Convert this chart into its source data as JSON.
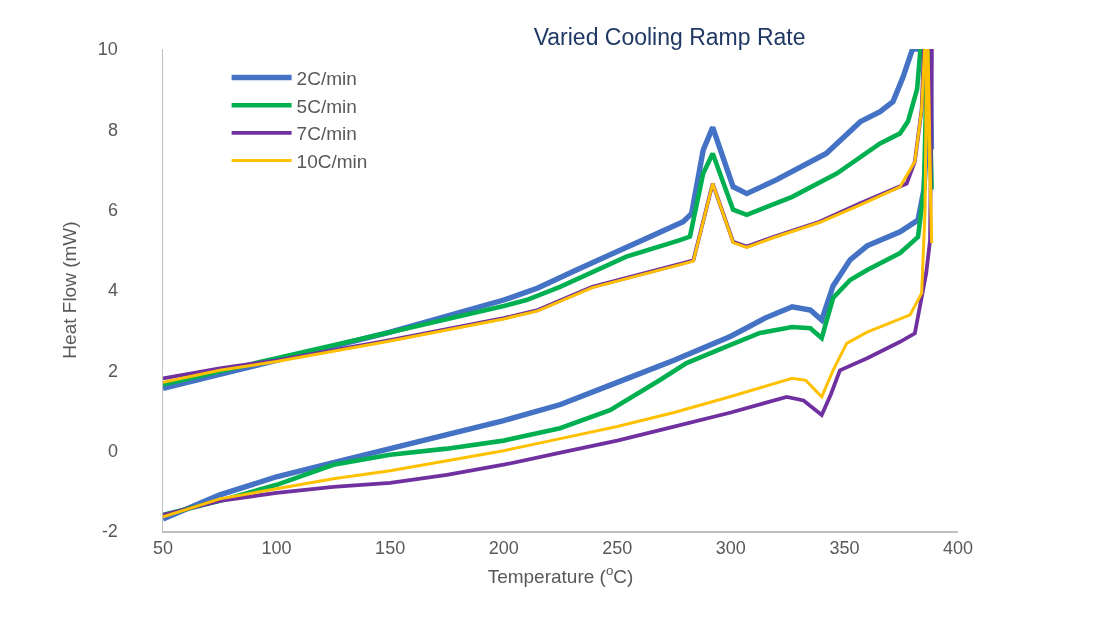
{
  "chart_data": {
    "type": "line",
    "title": "Varied Cooling Ramp Rate",
    "xlabel": "Temperature ($^{o}$C)",
    "ylabel": "Heat Flow (mW)",
    "xlim": [
      50,
      400
    ],
    "xticks": [
      50,
      100,
      150,
      200,
      250,
      300,
      350,
      400
    ],
    "ylim": [
      -2,
      10
    ],
    "yticks": [
      -2,
      0,
      2,
      4,
      6,
      8,
      10
    ],
    "grid": false,
    "legend": "top left",
    "series": [
      {
        "name": "2C/min",
        "color": "#4472c4",
        "x": [
          50,
          75,
          100,
          125,
          150,
          175,
          200,
          225,
          250,
          275,
          300,
          315,
          327,
          335,
          340,
          345,
          352.5,
          360,
          374.5,
          382.4,
          385,
          386.5,
          387.2,
          388.3,
          387.8,
          380,
          375.8,
          371.4,
          365.7,
          357,
          342,
          320,
          307,
          301,
          292,
          287.8,
          282.7,
          279,
          261,
          232,
          215,
          200,
          150,
          100,
          75,
          50
        ],
        "values": [
          -1.7,
          -1.1,
          -0.65,
          -0.3,
          0.05,
          0.4,
          0.75,
          1.15,
          1.7,
          2.25,
          2.85,
          3.3,
          3.58,
          3.5,
          3.25,
          4.1,
          4.75,
          5.1,
          5.45,
          5.74,
          6.5,
          8,
          10,
          7.5,
          10,
          10,
          9.3,
          8.69,
          8.44,
          8.19,
          7.4,
          6.74,
          6.4,
          6.57,
          8.05,
          7.48,
          5.9,
          5.7,
          5.24,
          4.5,
          4.05,
          3.75,
          2.95,
          2.25,
          1.9,
          1.55
        ]
      },
      {
        "name": "5C/min",
        "color": "#00b050",
        "x": [
          50,
          75,
          100,
          125,
          150,
          175,
          200,
          224.8,
          246.8,
          268.8,
          280.5,
          298,
          312.8,
          327,
          335,
          340,
          345,
          352.5,
          360,
          374.5,
          382.4,
          385,
          386.5,
          388.4,
          387,
          383.5,
          382,
          378,
          374.5,
          365.7,
          346.6,
          327,
          307,
          301,
          292,
          287.8,
          282,
          277.6,
          254,
          224.8,
          210,
          200,
          150,
          100,
          50
        ],
        "values": [
          -1.6,
          -1.25,
          -0.85,
          -0.35,
          -0.1,
          0.05,
          0.25,
          0.56,
          1.01,
          1.76,
          2.18,
          2.59,
          2.93,
          3.08,
          3.05,
          2.8,
          3.8,
          4.25,
          4.5,
          4.92,
          5.32,
          6.5,
          10,
          6.5,
          10,
          10,
          9,
          8.2,
          7.9,
          7.65,
          6.9,
          6.32,
          5.87,
          6.0,
          7.4,
          6.9,
          5.33,
          5.24,
          4.83,
          4.08,
          3.75,
          3.6,
          2.95,
          2.3,
          1.65
        ]
      },
      {
        "name": "7C/min",
        "color": "#7030a0",
        "x": [
          50,
          75,
          100,
          125,
          150,
          175,
          200,
          225,
          250,
          275,
          300,
          324.6,
          332,
          340,
          344,
          348,
          360,
          374.5,
          381,
          386,
          387.7,
          388.5,
          385,
          384,
          381,
          377.4,
          357,
          339,
          318.6,
          307,
          301,
          292,
          283.5,
          279,
          239,
          215,
          200,
          150,
          100,
          75,
          50
        ],
        "values": [
          -1.6,
          -1.25,
          -1.05,
          -0.9,
          -0.8,
          -0.6,
          -0.35,
          -0.05,
          0.25,
          0.6,
          0.95,
          1.34,
          1.25,
          0.89,
          1.4,
          2.0,
          2.3,
          2.71,
          2.92,
          4.42,
          5.24,
          10,
          10,
          8.5,
          7.2,
          6.65,
          6.16,
          5.7,
          5.32,
          5.08,
          5.2,
          6.65,
          4.74,
          4.67,
          4.08,
          3.5,
          3.3,
          2.75,
          2.25,
          2.05,
          1.8
        ]
      },
      {
        "name": "10C/min",
        "color": "#ffc000",
        "x": [
          50,
          75,
          100,
          125,
          150,
          175,
          200,
          225,
          250,
          275,
          300,
          327,
          333,
          340,
          345,
          351,
          360,
          378.9,
          384,
          385.5,
          386.2,
          388.4,
          386.8,
          385.3,
          384,
          381,
          374.5,
          357,
          339,
          318.6,
          307,
          301,
          292,
          283.5,
          279,
          239,
          215,
          200,
          150,
          100,
          75,
          50
        ],
        "values": [
          -1.65,
          -1.2,
          -0.95,
          -0.7,
          -0.5,
          -0.25,
          0.0,
          0.3,
          0.6,
          0.95,
          1.35,
          1.8,
          1.75,
          1.34,
          2.0,
          2.67,
          2.95,
          3.38,
          3.92,
          6,
          10,
          5.17,
          10,
          10,
          8.5,
          7.2,
          6.57,
          6.12,
          5.68,
          5.3,
          5.06,
          5.18,
          6.65,
          4.72,
          4.65,
          4.06,
          3.48,
          3.28,
          2.73,
          2.22,
          2.0,
          1.7
        ]
      }
    ]
  }
}
